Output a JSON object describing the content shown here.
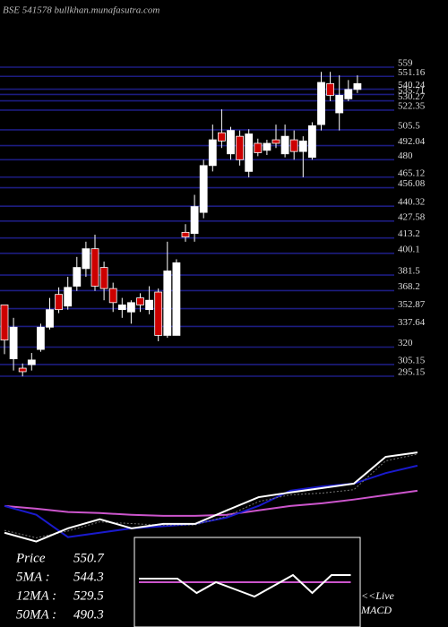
{
  "chart_data": [
    {
      "type": "candlestick",
      "title": "BSE 541578 bullkhan.munafasutra.com",
      "open": [
        356,
        310,
        302,
        305,
        318,
        337,
        365,
        355,
        372,
        387,
        404,
        388,
        370,
        352,
        350,
        362,
        352,
        367,
        330,
        330,
        418,
        417,
        435,
        475,
        503,
        485,
        500,
        470,
        494,
        488,
        497,
        485,
        497,
        487,
        482,
        510,
        545,
        520,
        532,
        540
      ],
      "high": [
        356,
        345,
        306,
        315,
        340,
        362,
        371,
        380,
        397,
        410,
        416,
        393,
        375,
        362,
        360,
        366,
        372,
        370,
        410,
        395,
        425,
        450,
        480,
        510,
        523,
        508,
        505,
        506,
        498,
        497,
        510,
        510,
        505,
        500,
        512,
        555,
        555,
        552,
        548,
        552
      ],
      "low": [
        314,
        300,
        295,
        300,
        316,
        335,
        349,
        352,
        368,
        380,
        368,
        360,
        350,
        345,
        340,
        350,
        348,
        325,
        328,
        330,
        410,
        410,
        430,
        470,
        490,
        480,
        475,
        465,
        483,
        484,
        490,
        482,
        480,
        465,
        480,
        505,
        530,
        505,
        530,
        537
      ],
      "close": [
        326,
        337,
        299,
        309,
        337,
        352,
        352,
        371,
        388,
        404,
        372,
        370,
        358,
        356,
        358,
        356,
        360,
        330,
        385,
        392,
        414,
        440,
        475,
        497,
        496,
        505,
        480,
        502,
        486,
        494,
        494,
        500,
        487,
        496,
        509,
        546,
        535,
        535,
        540,
        545
      ],
      "up_color": "#ffffff",
      "down_color": "#cc0000",
      "grid_color": "#1c1c80",
      "ylim": [
        295.15,
        559
      ],
      "yticks": [
        559,
        551.16,
        540.24,
        535.71,
        530.27,
        522.35,
        505.5,
        492.04,
        480,
        465.12,
        456.08,
        440.32,
        427.58,
        413.2,
        400.1,
        381.5,
        368.2,
        352.87,
        337.64,
        320,
        305.15,
        295.15
      ]
    },
    {
      "type": "line",
      "x": [
        0,
        3,
        6,
        9,
        12,
        15,
        18,
        21,
        24,
        27,
        30,
        33,
        36,
        39
      ],
      "ylim": [
        270,
        590
      ],
      "series": [
        {
          "name": "50MA :",
          "color": "#cc55cc",
          "values": [
            392,
            384,
            374,
            371,
            366,
            363,
            363,
            366,
            379,
            392,
            400,
            411,
            424,
            437
          ],
          "latest": 490.3
        },
        {
          "name": "12MA :",
          "color": "#1a1acc",
          "values": [
            392,
            366,
            300,
            313,
            326,
            332,
            339,
            358,
            392,
            437,
            450,
            458,
            489,
            511
          ],
          "latest": 529.5
        },
        {
          "name": "5MA :",
          "color": "#777777",
          "values": [
            320,
            298,
            318,
            345,
            340,
            335,
            336,
            362,
            405,
            425,
            430,
            440,
            525,
            545
          ],
          "latest": 544.3
        },
        {
          "name": "Price",
          "color": "#ffffff",
          "values": [
            313,
            287,
            326,
            353,
            326,
            339,
            339,
            379,
            418,
            432,
            445,
            458,
            537,
            550
          ],
          "latest": 550.7
        }
      ]
    },
    {
      "type": "line",
      "annotation": [
        "<<Live",
        "MACD"
      ],
      "x": [
        0,
        1,
        2,
        3,
        4,
        5,
        6,
        7,
        8,
        9,
        10,
        11
      ],
      "ylim": [
        -1,
        1
      ],
      "series": [
        {
          "color": "#cc55cc",
          "values": [
            0,
            0,
            0,
            0,
            0,
            0,
            0,
            0,
            0,
            0,
            0,
            0
          ]
        },
        {
          "color": "#ffffff",
          "values": [
            0.1,
            0.1,
            0.1,
            -0.3,
            0,
            -0.2,
            -0.4,
            -0.1,
            0.2,
            -0.3,
            0.2,
            0.2
          ]
        }
      ]
    }
  ]
}
